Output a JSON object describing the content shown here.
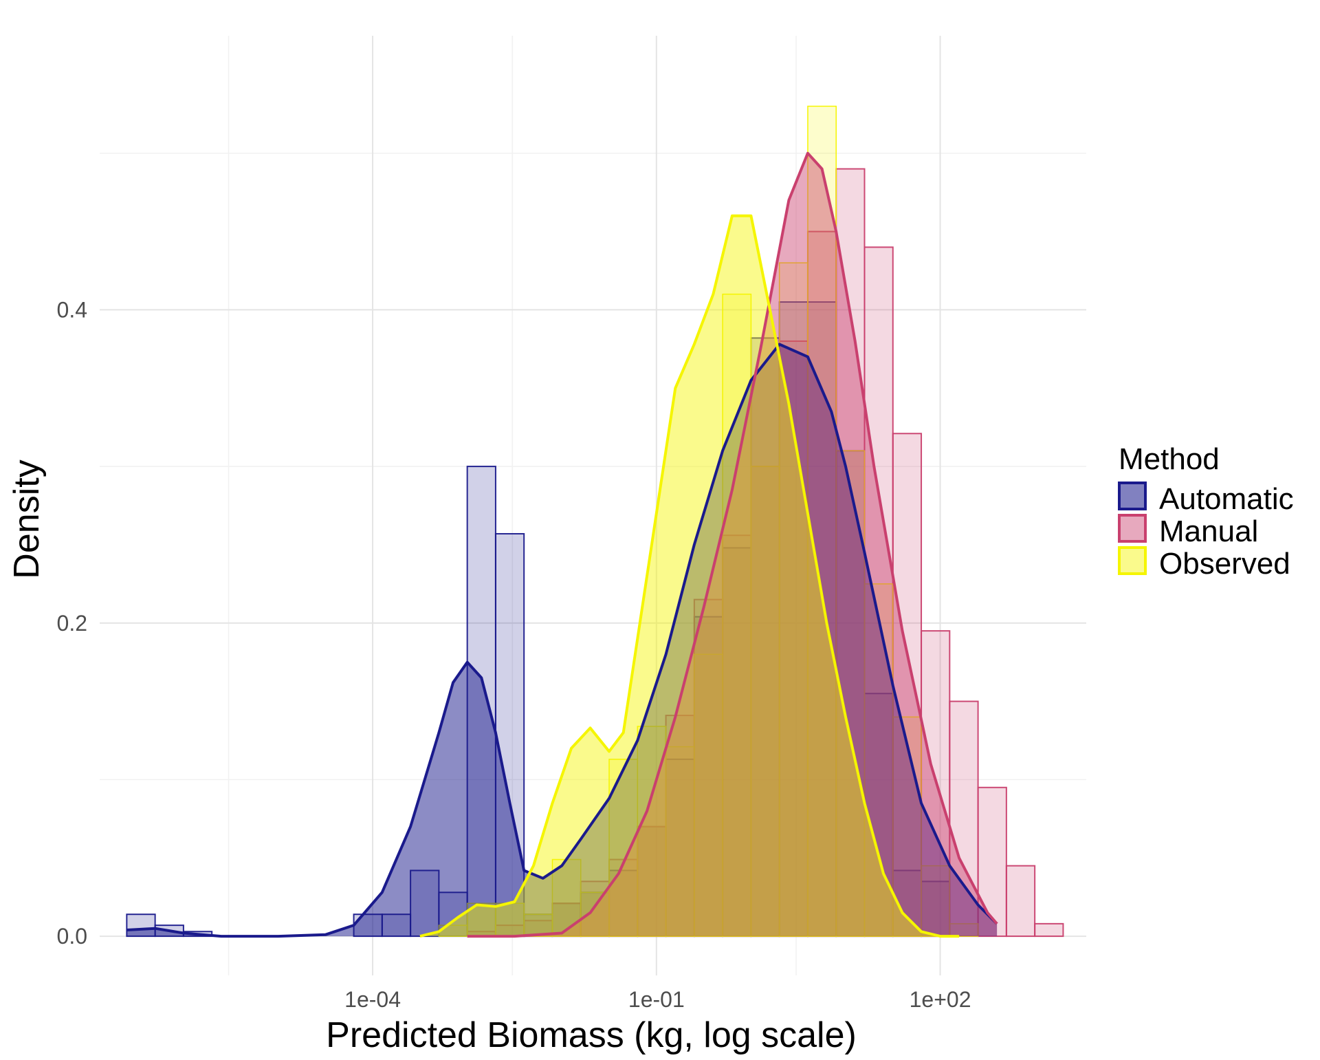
{
  "chart_data": {
    "type": "histogram",
    "overlay": "density",
    "xlabel": "Predicted Biomass (kg, log scale)",
    "ylabel": "Density",
    "x_scale": "log10",
    "x_ticks": [
      {
        "value": 0.0001,
        "label": "1e-04"
      },
      {
        "value": 0.1,
        "label": "1e-01"
      },
      {
        "value": 100,
        "label": "1e+02"
      }
    ],
    "x_minor_ticks": [
      3e-06,
      0.003,
      3
    ],
    "xlim": [
      1.3e-07,
      3500
    ],
    "y_ticks": [
      {
        "value": 0.0,
        "label": "0.0"
      },
      {
        "value": 0.2,
        "label": "0.2"
      },
      {
        "value": 0.4,
        "label": "0.4"
      }
    ],
    "y_minor_ticks": [
      0.1,
      0.3,
      0.5
    ],
    "ylim": [
      -0.025,
      0.575
    ],
    "grid": true,
    "legend": {
      "title": "Method",
      "position": "right"
    },
    "bin_width_log10": 0.3,
    "series": [
      {
        "name": "Automatic",
        "color": "#1a1a8c",
        "bin_starts_log10": [
          -6.6,
          -6.3,
          -6.0,
          -5.7,
          -5.4,
          -5.1,
          -4.8,
          -4.5,
          -4.2,
          -3.9,
          -3.6,
          -3.3,
          -3.0,
          -2.7,
          -2.4,
          -2.1,
          -1.8,
          -1.5,
          -1.2,
          -0.9,
          -0.6,
          -0.3,
          0.0,
          0.3,
          0.6,
          0.9,
          1.2,
          1.5,
          1.8,
          2.1,
          2.4,
          2.7,
          3.0
        ],
        "density": [
          0.014,
          0.007,
          0.003,
          0.0,
          0.0,
          0.0,
          0.0,
          0.0,
          0.014,
          0.014,
          0.042,
          0.028,
          0.3,
          0.257,
          0.014,
          0.021,
          0.028,
          0.042,
          0.07,
          0.113,
          0.204,
          0.248,
          0.382,
          0.405,
          0.405,
          0.31,
          0.155,
          0.042,
          0.035,
          0.0,
          0.0,
          0.0,
          0.0
        ],
        "density_curve": {
          "x_log10": [
            -6.6,
            -6.3,
            -6.0,
            -5.6,
            -5.0,
            -4.5,
            -4.2,
            -3.9,
            -3.6,
            -3.3,
            -3.15,
            -3.0,
            -2.85,
            -2.7,
            -2.55,
            -2.4,
            -2.2,
            -2.0,
            -1.8,
            -1.5,
            -1.2,
            -0.9,
            -0.6,
            -0.3,
            0.0,
            0.3,
            0.6,
            0.85,
            1.0,
            1.2,
            1.5,
            1.8,
            2.1,
            2.4,
            2.6
          ],
          "y": [
            0.004,
            0.005,
            0.002,
            0.0,
            0.0,
            0.001,
            0.007,
            0.028,
            0.07,
            0.13,
            0.162,
            0.175,
            0.165,
            0.13,
            0.085,
            0.042,
            0.037,
            0.045,
            0.062,
            0.088,
            0.125,
            0.18,
            0.25,
            0.31,
            0.355,
            0.378,
            0.37,
            0.335,
            0.3,
            0.245,
            0.16,
            0.085,
            0.045,
            0.02,
            0.008
          ]
        }
      },
      {
        "name": "Manual",
        "color": "#c9406e",
        "bin_starts_log10": [
          -3.0,
          -2.7,
          -2.4,
          -2.1,
          -1.8,
          -1.5,
          -1.2,
          -0.9,
          -0.6,
          -0.3,
          0.0,
          0.3,
          0.6,
          0.9,
          1.2,
          1.5,
          1.8,
          2.1,
          2.4,
          2.7,
          3.0
        ],
        "density": [
          0.003,
          0.007,
          0.01,
          0.021,
          0.035,
          0.049,
          0.07,
          0.141,
          0.215,
          0.256,
          0.3,
          0.38,
          0.45,
          0.49,
          0.44,
          0.321,
          0.195,
          0.15,
          0.095,
          0.045,
          0.008
        ],
        "density_curve": {
          "x_log10": [
            -3.0,
            -2.5,
            -2.0,
            -1.7,
            -1.4,
            -1.1,
            -0.8,
            -0.5,
            -0.2,
            0.1,
            0.4,
            0.6,
            0.75,
            0.9,
            1.1,
            1.3,
            1.6,
            1.9,
            2.2,
            2.5,
            2.6
          ],
          "y": [
            0.0,
            0.0,
            0.002,
            0.015,
            0.04,
            0.08,
            0.14,
            0.21,
            0.285,
            0.375,
            0.47,
            0.5,
            0.49,
            0.45,
            0.38,
            0.3,
            0.195,
            0.11,
            0.05,
            0.015,
            0.008
          ]
        }
      },
      {
        "name": "Observed",
        "color": "#f5f500",
        "bin_starts_log10": [
          -3.3,
          -3.0,
          -2.7,
          -2.4,
          -2.1,
          -1.8,
          -1.5,
          -1.2,
          -0.9,
          -0.6,
          -0.3,
          0.0,
          0.3,
          0.6,
          0.9,
          1.2,
          1.5,
          1.8,
          2.1
        ],
        "density": [
          0.007,
          0.021,
          0.021,
          0.014,
          0.049,
          0.028,
          0.113,
          0.134,
          0.121,
          0.18,
          0.41,
          0.3,
          0.43,
          0.53,
          0.31,
          0.225,
          0.14,
          0.045,
          0.008
        ],
        "density_curve": {
          "x_log10": [
            -3.5,
            -3.3,
            -3.1,
            -2.9,
            -2.7,
            -2.5,
            -2.3,
            -2.1,
            -1.9,
            -1.7,
            -1.5,
            -1.35,
            -1.2,
            -1.0,
            -0.8,
            -0.6,
            -0.4,
            -0.2,
            0.0,
            0.2,
            0.4,
            0.6,
            0.8,
            1.0,
            1.2,
            1.4,
            1.6,
            1.8,
            2.0,
            2.2
          ],
          "y": [
            0.0,
            0.003,
            0.012,
            0.02,
            0.019,
            0.022,
            0.045,
            0.085,
            0.12,
            0.133,
            0.118,
            0.13,
            0.19,
            0.27,
            0.35,
            0.378,
            0.41,
            0.46,
            0.46,
            0.4,
            0.34,
            0.27,
            0.2,
            0.14,
            0.085,
            0.04,
            0.015,
            0.003,
            0.0,
            0.0
          ]
        }
      }
    ]
  }
}
